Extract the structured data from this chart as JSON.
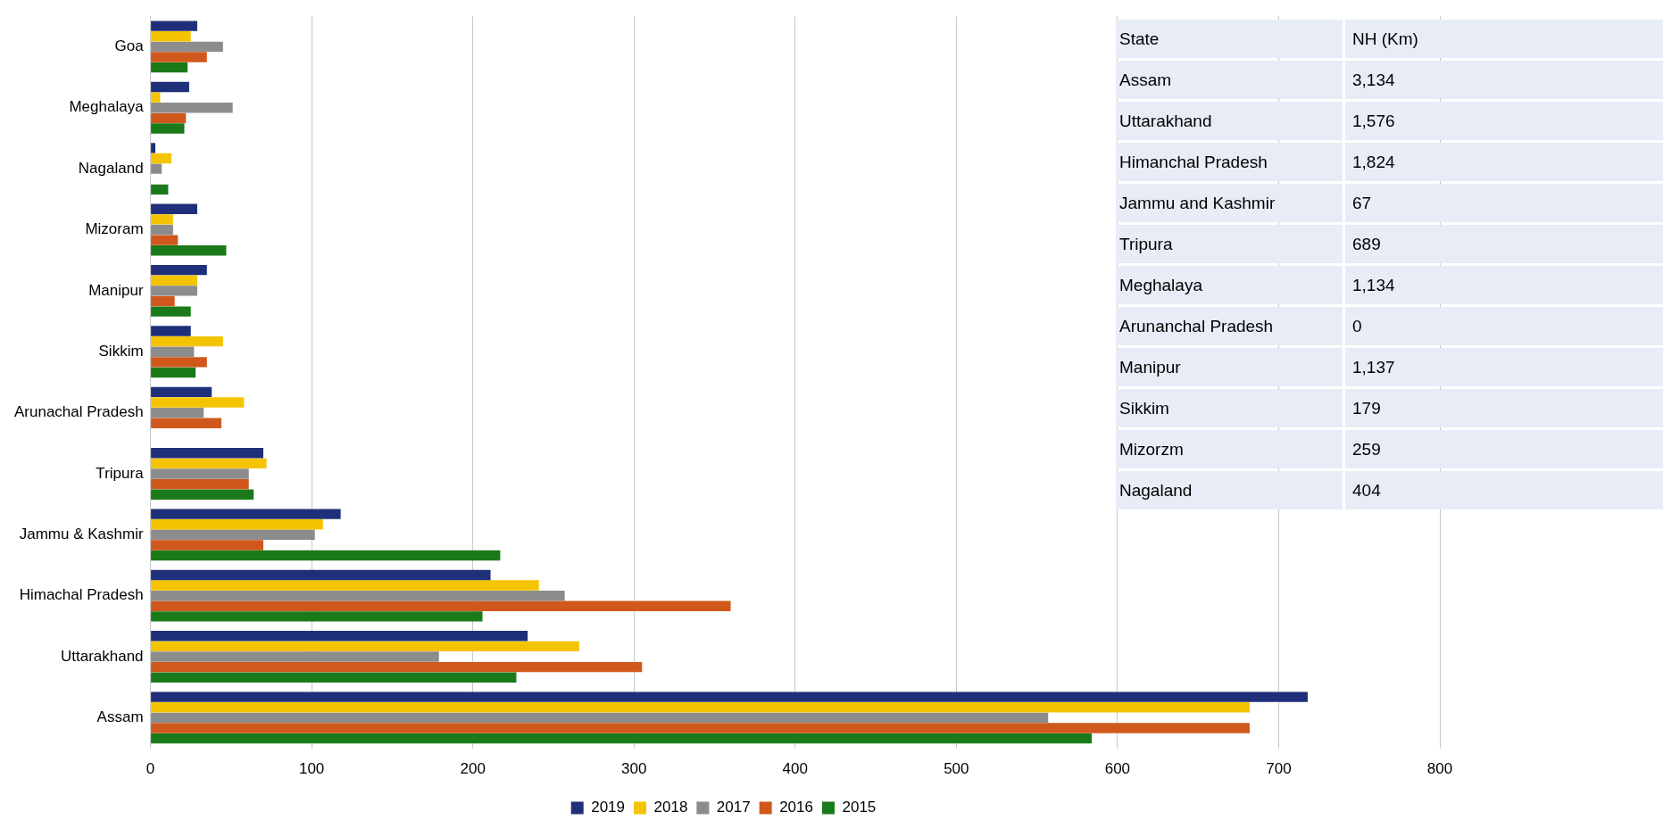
{
  "chart_data": [
    {
      "type": "bar",
      "orientation": "horizontal",
      "categories": [
        "Goa",
        "Meghalaya",
        "Nagaland",
        "Mizoram",
        "Manipur",
        "Sikkim",
        "Arunachal Pradesh",
        "Tripura",
        "Jammu & Kashmir",
        "Himachal Pradesh",
        "Uttarakhand",
        "Assam"
      ],
      "series": [
        {
          "name": "2019",
          "color": "#1f2f7a",
          "values": [
            29,
            24,
            3,
            29,
            35,
            25,
            38,
            70,
            118,
            211,
            234,
            718
          ]
        },
        {
          "name": "2018",
          "color": "#f5c400",
          "values": [
            25,
            6,
            13,
            14,
            29,
            45,
            58,
            72,
            107,
            241,
            266,
            682
          ]
        },
        {
          "name": "2017",
          "color": "#8c8c8c",
          "values": [
            45,
            51,
            7,
            14,
            29,
            27,
            33,
            61,
            102,
            257,
            179,
            557
          ]
        },
        {
          "name": "2016",
          "color": "#d0581c",
          "values": [
            35,
            22,
            null,
            17,
            15,
            35,
            44,
            61,
            70,
            360,
            305,
            682
          ]
        },
        {
          "name": "2015",
          "color": "#1a7a1a",
          "values": [
            23,
            21,
            11,
            47,
            25,
            28,
            null,
            64,
            217,
            206,
            227,
            584
          ]
        }
      ],
      "xlim": [
        0,
        800
      ],
      "xticks": [
        0,
        100,
        200,
        300,
        400,
        500,
        600,
        700,
        800
      ],
      "grid": "x",
      "legend": "bottom"
    },
    {
      "type": "other",
      "annotations": [
        "State",
        "NH (Km)",
        "Assam",
        "3,134",
        "Uttarakhand",
        "1,576",
        "Himanchal Pradesh",
        "1,824",
        "Jammu and Kashmir",
        "67",
        "Tripura",
        "689",
        "Meghalaya",
        "1,134",
        "Arunanchal Pradesh",
        "0",
        "Manipur",
        "1,137",
        "Sikkim",
        "179",
        "Mizorzm",
        "259",
        "Nagaland",
        "404"
      ]
    }
  ]
}
